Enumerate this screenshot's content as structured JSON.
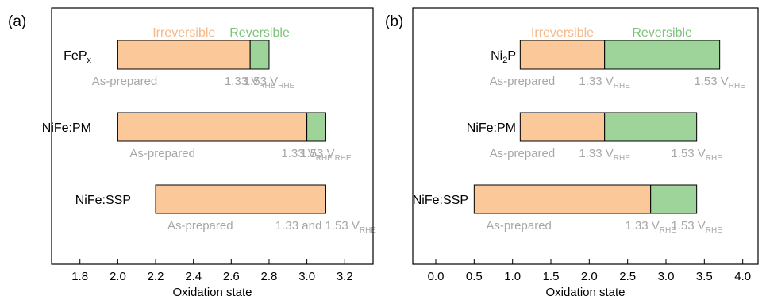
{
  "colors": {
    "irreversible": "#fbc89a",
    "reversible": "#9ed39a",
    "irreversible_label": "#f6b886",
    "reversible_label": "#7dc27a",
    "annotation": "#a7a7a7",
    "axis": "#000000"
  },
  "chart_data": [
    {
      "type": "bar",
      "panel_label": "(a)",
      "xlabel": "Oxidation state",
      "xlim": [
        1.65,
        3.35
      ],
      "xticks": [
        "1.8",
        "2.0",
        "2.2",
        "2.4",
        "2.6",
        "2.8",
        "3.0",
        "3.2"
      ],
      "legend": {
        "irreversible": "Irreversible",
        "reversible": "Reversible"
      },
      "rows": [
        {
          "material": {
            "base": "FeP",
            "sub": "x",
            "rest": ""
          },
          "start": 2.0,
          "irreversible_end": 2.7,
          "reversible_end": 2.8,
          "annotations": [
            {
              "x": 1.8,
              "main": "As-prepared",
              "sub": ""
            },
            {
              "x": 2.7,
              "main": "1.33 V",
              "sub": "RHE"
            },
            {
              "x": 2.8,
              "main": "1.53 V",
              "sub": "RHE"
            }
          ]
        },
        {
          "material": {
            "base": "NiFe:PM",
            "sub": "",
            "rest": ""
          },
          "start": 2.0,
          "irreversible_end": 3.0,
          "reversible_end": 3.1,
          "annotations": [
            {
              "x": 2.0,
              "main": "As-prepared",
              "sub": ""
            },
            {
              "x": 3.0,
              "main": "1.33 V",
              "sub": "RHE"
            },
            {
              "x": 3.1,
              "main": "1.53 V",
              "sub": "RHE"
            }
          ]
        },
        {
          "material": {
            "base": "NiFe:SSP",
            "sub": "",
            "rest": ""
          },
          "start": 2.2,
          "irreversible_end": 3.1,
          "reversible_end": 3.1,
          "annotations": [
            {
              "x": 2.2,
              "main": "As-prepared",
              "sub": ""
            },
            {
              "x": 3.1,
              "main": "1.33 and 1.53 V",
              "sub": "RHE"
            }
          ]
        }
      ]
    },
    {
      "type": "bar",
      "panel_label": "(b)",
      "xlabel": "Oxidation state",
      "xlim": [
        -0.3,
        4.2
      ],
      "xticks": [
        "0.0",
        "0.5",
        "1.0",
        "1.5",
        "2.0",
        "2.5",
        "3.0",
        "3.5",
        "4.0"
      ],
      "legend": {
        "irreversible": "Irreversible",
        "reversible": "Reversible"
      },
      "rows": [
        {
          "material": {
            "base": "Ni",
            "sub": "2",
            "rest": "P"
          },
          "start": 1.1,
          "irreversible_end": 2.2,
          "reversible_end": 3.7,
          "annotations": [
            {
              "x": 0.7,
              "main": "As-prepared",
              "sub": ""
            },
            {
              "x": 2.2,
              "main": "1.33 V",
              "sub": "RHE"
            },
            {
              "x": 3.7,
              "main": "1.53 V",
              "sub": "RHE"
            }
          ]
        },
        {
          "material": {
            "base": "NiFe:PM",
            "sub": "",
            "rest": ""
          },
          "start": 1.1,
          "irreversible_end": 2.2,
          "reversible_end": 3.4,
          "annotations": [
            {
              "x": 0.7,
              "main": "As-prepared",
              "sub": ""
            },
            {
              "x": 2.2,
              "main": "1.33 V",
              "sub": "RHE"
            },
            {
              "x": 3.4,
              "main": "1.53 V",
              "sub": "RHE"
            }
          ]
        },
        {
          "material": {
            "base": "NiFe:SSP",
            "sub": "",
            "rest": ""
          },
          "start": 0.5,
          "irreversible_end": 2.8,
          "reversible_end": 3.4,
          "annotations": [
            {
              "x": 0.5,
              "main": "As-prepared",
              "sub": ""
            },
            {
              "x": 2.8,
              "main": "1.33 V",
              "sub": "RHE"
            },
            {
              "x": 3.4,
              "main": "1.53 V",
              "sub": "RHE"
            }
          ]
        }
      ]
    }
  ]
}
